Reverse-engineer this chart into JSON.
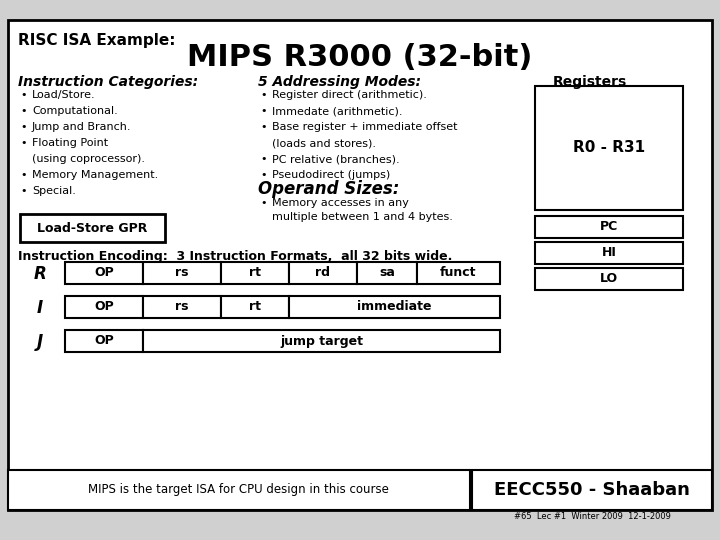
{
  "title_small": "RISC ISA Example:",
  "title_large": "MIPS R3000 (32-bit)",
  "col1_header": "Instruction Categories:",
  "col2_header": "5 Addressing Modes:",
  "col3_header": "Registers",
  "col1_items": [
    "Load/Store.",
    "Computational.",
    "Jump and Branch.",
    "Floating Point\n(using coprocessor).",
    "Memory Management.",
    "Special."
  ],
  "col2_items": [
    "Register direct (arithmetic).",
    "Immedate (arithmetic).",
    "Base register + immediate offset\n(loads and stores).",
    "PC relative (branches).",
    "Pseudodirect (jumps)"
  ],
  "registers_top": "R0 - R31",
  "registers_bottom": [
    "PC",
    "HI",
    "LO"
  ],
  "operand_header": "Operand Sizes:",
  "operand_text": "Memory accesses in any\nmultiple between 1 and 4 bytes.",
  "load_store_box": "Load-Store GPR",
  "encoding_label": "Instruction Encoding:  3 Instruction Formats,  all 32 bits wide.",
  "r_format": [
    "OP",
    "rs",
    "rt",
    "rd",
    "sa",
    "funct"
  ],
  "i_format": [
    "OP",
    "rs",
    "rt",
    "immediate"
  ],
  "j_format": [
    "OP",
    "jump target"
  ],
  "footer_left": "MIPS is the target ISA for CPU design in this course",
  "footer_right": "EECC550 - Shaaban",
  "footer_bottom": "#65  Lec #1  Winter 2009  12-1-2009",
  "bg_color": "#d0d0d0",
  "box_color": "#ffffff",
  "border_color": "#000000"
}
